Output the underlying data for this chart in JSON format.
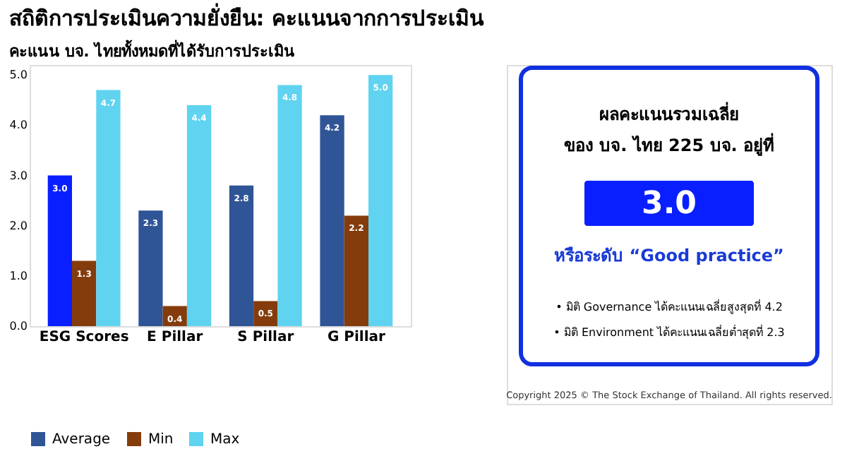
{
  "chart_data": [
    {
      "type": "bar",
      "title": "สถิติการประเมินความยั่งยืน: คะแนนจากการประเมิน",
      "subtitle": "คะแนน บจ. ไทยทั้งหมดที่ได้รับการประเมิน",
      "categories": [
        "ESG Scores",
        "E Pillar",
        "S Pillar",
        "G Pillar"
      ],
      "series": [
        {
          "name": "Average",
          "color": "#2f5597",
          "colors": [
            "#0a1fff",
            "#2f5597",
            "#2f5597",
            "#2f5597"
          ],
          "values": [
            3.0,
            2.3,
            2.8,
            4.2
          ],
          "value_labels": [
            "3.0",
            "2.3",
            "2.8",
            "4.2"
          ]
        },
        {
          "name": "Min",
          "color": "#843c0c",
          "values": [
            1.3,
            0.4,
            0.5,
            2.2
          ],
          "value_labels": [
            "1.3",
            "0.4",
            "0.5",
            "2.2"
          ]
        },
        {
          "name": "Max",
          "color": "#5fd3f0",
          "values": [
            4.7,
            4.4,
            4.8,
            5.0
          ],
          "value_labels": [
            "4.7",
            "4.4",
            "4.8",
            "5.0"
          ]
        }
      ],
      "ylim": [
        0,
        5.2
      ],
      "yticks": [
        {
          "value": 0,
          "label": "0.0"
        },
        {
          "value": 1,
          "label": "1.0"
        },
        {
          "value": 2,
          "label": "2.0"
        },
        {
          "value": 3,
          "label": "3.0"
        },
        {
          "value": 4,
          "label": "4.0"
        },
        {
          "value": 5,
          "label": "5.0"
        }
      ],
      "data_labels": true,
      "legend": "bottom",
      "grid": false
    },
    {
      "type": "other",
      "title": "ผลคะแนนรวมเฉลี่ย",
      "subtitle": "ของ บจ. ไทย 225 บจ. อยู่ที่",
      "annotations": [
        "3.0",
        "หรือระดับ “Good practice”",
        "• มิติ Governance ได้คะแนนเฉลี่ยสูงสุดที่ 4.2",
        "• มิติ Environment ได้คะแนนเฉลี่ยต่ำสุดที่ 2.3",
        "Copyright 2025 © The Stock Exchange of Thailand. All rights reserved."
      ]
    }
  ]
}
